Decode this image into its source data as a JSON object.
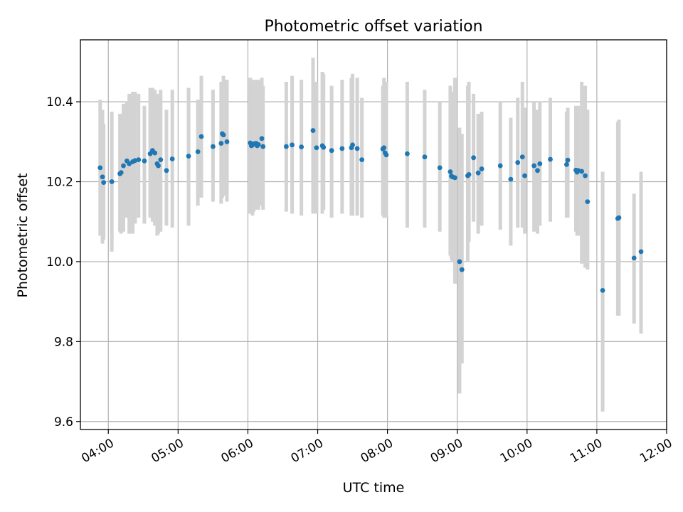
{
  "chart_data": {
    "type": "scatter",
    "title": "Photometric offset variation",
    "xlabel": "UTC time",
    "ylabel": "Photometric offset",
    "grid": true,
    "x_axis": {
      "kind": "time",
      "range": [
        "03:36",
        "12:00"
      ],
      "ticks": [
        "04:00",
        "05:00",
        "06:00",
        "07:00",
        "08:00",
        "09:00",
        "10:00",
        "11:00",
        "12:00"
      ]
    },
    "y_axis": {
      "range": [
        9.58,
        10.555
      ],
      "ticks": [
        9.6,
        9.8,
        10.0,
        10.2,
        10.4
      ],
      "tick_labels": [
        "9.6",
        "9.8",
        "10.0",
        "10.2",
        "10.4"
      ]
    },
    "colors": {
      "point": "#1f77b4",
      "errorbar": "#d3d3d3",
      "grid": "#b0b0b0"
    },
    "series": [
      {
        "x": [
          "03:53",
          "03:55",
          "03:56",
          "04:03",
          "04:10",
          "04:11",
          "04:13",
          "04:16",
          "04:18",
          "04:21",
          "04:23",
          "04:26",
          "04:31",
          "04:36",
          "04:38",
          "04:40",
          "04:42",
          "04:43",
          "04:45",
          "04:50",
          "04:55",
          "05:09",
          "05:17",
          "05:20",
          "05:30",
          "05:37",
          "05:38",
          "05:39",
          "05:42",
          "06:02",
          "06:03",
          "06:04",
          "06:05",
          "06:07",
          "06:08",
          "06:09",
          "06:12",
          "06:13",
          "06:33",
          "06:38",
          "06:46",
          "06:56",
          "06:59",
          "07:04",
          "07:05",
          "07:12",
          "07:21",
          "07:29",
          "07:30",
          "07:34",
          "07:38",
          "07:56",
          "07:57",
          "07:58",
          "07:59",
          "08:17",
          "08:32",
          "08:45",
          "08:54",
          "08:55",
          "08:56",
          "08:58",
          "09:02",
          "09:04",
          "09:09",
          "09:10",
          "09:14",
          "09:18",
          "09:21",
          "09:37",
          "09:46",
          "09:52",
          "09:56",
          "09:58",
          "10:06",
          "10:09",
          "10:11",
          "10:20",
          "10:34",
          "10:35",
          "10:42",
          "10:43",
          "10:44",
          "10:47",
          "10:50",
          "10:52",
          "11:05",
          "11:18",
          "11:19",
          "11:32",
          "11:38"
        ],
        "y": [
          10.235,
          10.212,
          10.198,
          10.2,
          10.22,
          10.223,
          10.24,
          10.252,
          10.245,
          10.25,
          10.253,
          10.255,
          10.252,
          10.27,
          10.278,
          10.272,
          10.245,
          10.24,
          10.255,
          10.228,
          10.257,
          10.264,
          10.275,
          10.313,
          10.288,
          10.296,
          10.32,
          10.317,
          10.3,
          10.297,
          10.29,
          10.292,
          10.295,
          10.296,
          10.29,
          10.293,
          10.308,
          10.288,
          10.288,
          10.292,
          10.287,
          10.328,
          10.285,
          10.29,
          10.286,
          10.278,
          10.283,
          10.285,
          10.292,
          10.283,
          10.255,
          10.282,
          10.285,
          10.272,
          10.267,
          10.27,
          10.262,
          10.235,
          10.225,
          10.214,
          10.212,
          10.21,
          10.0,
          9.98,
          10.215,
          10.218,
          10.26,
          10.222,
          10.232,
          10.24,
          10.206,
          10.248,
          10.262,
          10.215,
          10.24,
          10.228,
          10.245,
          10.256,
          10.243,
          10.254,
          10.229,
          10.224,
          10.228,
          10.226,
          10.215,
          10.15,
          9.928,
          10.108,
          10.11,
          10.009,
          10.025
        ],
        "err_low": [
          10.065,
          10.045,
          10.055,
          10.025,
          10.075,
          10.07,
          10.075,
          10.11,
          10.07,
          10.07,
          10.095,
          10.11,
          10.095,
          10.11,
          10.1,
          10.09,
          10.065,
          10.07,
          10.075,
          10.09,
          10.085,
          10.09,
          10.14,
          10.16,
          10.15,
          10.145,
          10.16,
          10.165,
          10.15,
          10.12,
          10.135,
          10.115,
          10.125,
          10.14,
          10.13,
          10.13,
          10.14,
          10.13,
          10.125,
          10.12,
          10.115,
          10.12,
          10.12,
          10.12,
          10.13,
          10.11,
          10.12,
          10.115,
          10.115,
          10.115,
          10.11,
          10.115,
          10.11,
          10.11,
          10.11,
          10.085,
          10.085,
          10.075,
          10.015,
          10.005,
          10.0,
          9.945,
          9.67,
          9.745,
          10.0,
          10.05,
          10.1,
          10.07,
          10.09,
          10.08,
          10.04,
          10.085,
          10.085,
          10.07,
          10.075,
          10.07,
          10.09,
          10.1,
          10.11,
          10.11,
          10.075,
          10.065,
          10.065,
          9.995,
          9.985,
          9.98,
          9.625,
          9.865,
          9.865,
          9.845,
          9.82
        ],
        "err_high": [
          10.405,
          10.38,
          10.345,
          10.375,
          10.37,
          10.37,
          10.395,
          10.4,
          10.42,
          10.425,
          10.425,
          10.42,
          10.39,
          10.435,
          10.435,
          10.43,
          10.42,
          10.41,
          10.43,
          10.38,
          10.43,
          10.435,
          10.405,
          10.465,
          10.43,
          10.45,
          10.445,
          10.465,
          10.455,
          10.46,
          10.445,
          10.45,
          10.455,
          10.455,
          10.45,
          10.455,
          10.46,
          10.44,
          10.45,
          10.465,
          10.455,
          10.51,
          10.45,
          10.475,
          10.47,
          10.44,
          10.455,
          10.46,
          10.47,
          10.46,
          10.41,
          10.44,
          10.46,
          10.435,
          10.45,
          10.45,
          10.43,
          10.4,
          10.44,
          10.42,
          10.425,
          10.46,
          10.335,
          10.32,
          10.44,
          10.45,
          10.42,
          10.37,
          10.375,
          10.4,
          10.36,
          10.41,
          10.45,
          10.385,
          10.4,
          10.38,
          10.4,
          10.41,
          10.375,
          10.385,
          10.39,
          10.375,
          10.39,
          10.45,
          10.44,
          10.38,
          10.225,
          10.35,
          10.355,
          10.17,
          10.225
        ]
      }
    ]
  }
}
